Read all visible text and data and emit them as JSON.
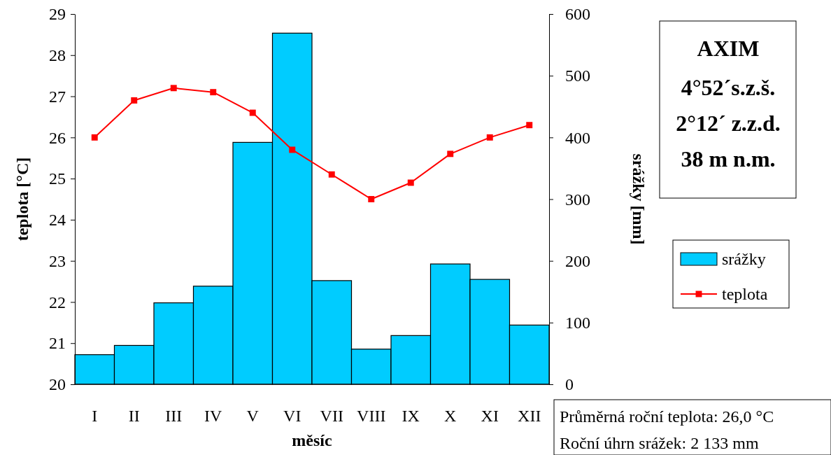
{
  "chart_data": {
    "type": "bar",
    "title": "AXIM",
    "subtitle": "4°52´s.z.š.\n2°12´ z.z.d.\n38 m n.m.",
    "xlabel": "měsíc",
    "ylabel": "teplota [°C]",
    "y2label": "srážky [mm]",
    "categories": [
      "I",
      "II",
      "III",
      "IV",
      "V",
      "VI",
      "VII",
      "VIII",
      "IX",
      "X",
      "XI",
      "XII"
    ],
    "series": [
      {
        "name": "srážky",
        "axis": "y2",
        "color": "#00ccff",
        "values": [
          48,
          63,
          132,
          159,
          392,
          569,
          168,
          57,
          79,
          195,
          170,
          96
        ]
      },
      {
        "name": "teplota",
        "type": "line",
        "axis": "y",
        "color": "#ff0000",
        "marker": "square",
        "values": [
          26.0,
          26.9,
          27.2,
          27.1,
          26.6,
          25.7,
          25.1,
          24.5,
          24.9,
          25.6,
          26.0,
          26.3
        ]
      }
    ],
    "ylim": [
      20,
      29
    ],
    "yticks": [
      20,
      21,
      22,
      23,
      24,
      25,
      26,
      27,
      28,
      29
    ],
    "y2lim": [
      0,
      600
    ],
    "y2ticks": [
      0,
      100,
      200,
      300,
      400,
      500,
      600
    ],
    "grid": false,
    "legend": "right",
    "annotations": [
      "Průměrná roční teplota: 26,0 °C",
      "Roční úhrn srážek: 2 133 mm"
    ]
  }
}
